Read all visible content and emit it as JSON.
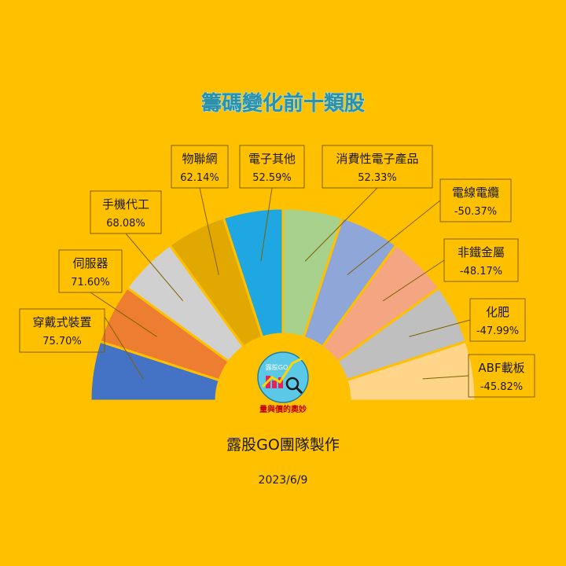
{
  "title": "籌碼變化前十類股",
  "footer": {
    "credit": "露股GO團隊製作",
    "date": "2023/6/9"
  },
  "logo": {
    "brand": "露股GO",
    "tagline": "量與價的奧妙"
  },
  "chart_data": {
    "type": "pie",
    "subtype": "half-donut",
    "categories": [
      "穿戴式裝置",
      "伺服器",
      "手機代工",
      "物聯網",
      "電子其他",
      "消費性電子產品",
      "電線電纜",
      "非鐵金屬",
      "化肥",
      "ABF載板"
    ],
    "values": [
      75.7,
      71.6,
      68.08,
      62.14,
      52.59,
      52.33,
      -50.37,
      -48.17,
      -47.99,
      -45.82
    ],
    "value_labels": [
      "75.70%",
      "71.60%",
      "68.08%",
      "62.14%",
      "52.59%",
      "52.33%",
      "-50.37%",
      "-48.17%",
      "-47.99%",
      "-45.82%"
    ],
    "colors": [
      "#4472C4",
      "#ED7D31",
      "#D0D0D0",
      "#E0A800",
      "#1EA7E1",
      "#A9D18E",
      "#8FA6D8",
      "#F4A582",
      "#BFBFBF",
      "#FFD58A"
    ]
  }
}
